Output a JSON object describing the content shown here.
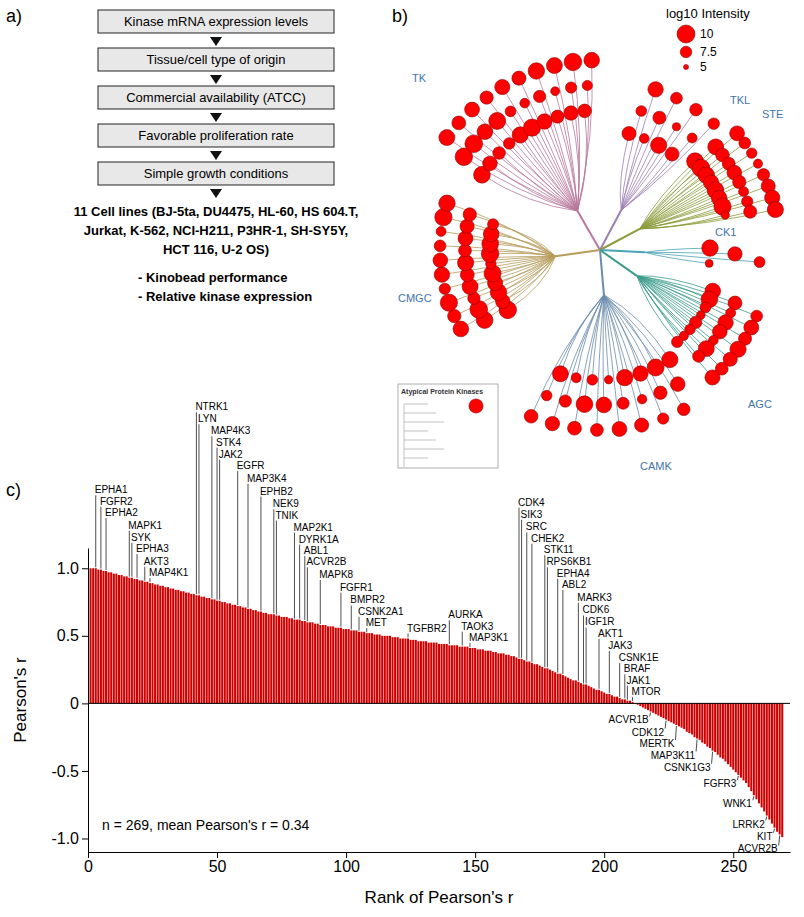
{
  "panel_labels": [
    "a)",
    "b)",
    "c)"
  ],
  "flowchart": {
    "steps": [
      "Kinase mRNA expression levels",
      "Tissue/cell type of origin",
      "Commercial availability (ATCC)",
      "Favorable proliferation rate",
      "Simple growth conditions"
    ],
    "result": "11 Cell lines (BJ-5ta, DU4475, HL-60, HS 604.T, Jurkat, K-562, NCI-H211, P3HR-1, SH-SY5Y, HCT 116, U-2 OS)",
    "criteria": [
      "- Kinobead performance",
      "- Relative kinase expression"
    ]
  },
  "kinome_tree": {
    "legend_title": "log10 Intensity",
    "legend_values": [
      10,
      7.5,
      5
    ],
    "color": "#ff0000",
    "inset_title": "Atypical Protein Kinases",
    "inset_intensities": [
      8.5
    ],
    "groups": [
      {
        "name": "TK",
        "intensities": [
          9.5,
          9.8,
          9.2,
          8.7,
          9.9,
          8.4,
          7.9,
          9.1,
          8.8,
          7.5,
          9.6,
          8.2,
          9.3,
          7.2,
          8.9,
          9.7,
          6.8,
          8.5,
          9.0,
          7.8,
          9.4,
          8.1,
          6.5,
          9.2,
          8.6,
          7.4,
          9.8,
          8.3,
          7.0,
          9.1
        ]
      },
      {
        "name": "TKL",
        "intensities": [
          8.5,
          7.2,
          9.0,
          6.8,
          8.1,
          7.6,
          9.3,
          6.2,
          7.9,
          8.4,
          6.9,
          7.5
        ]
      },
      {
        "name": "STE",
        "intensities": [
          9.6,
          9.2,
          8.8,
          9.9,
          8.3,
          7.6,
          9.4,
          8.0,
          7.1,
          9.0,
          8.7,
          6.6,
          9.5,
          8.2,
          7.8,
          9.1,
          6.9,
          8.5,
          9.7,
          7.4,
          8.9,
          6.3,
          8.1,
          9.3
        ]
      },
      {
        "name": "CK1",
        "intensities": [
          9.4,
          8.6,
          7.3,
          6.1
        ]
      },
      {
        "name": "AGC",
        "intensities": [
          9.1,
          8.4,
          7.6,
          9.5,
          6.9,
          8.8,
          7.2,
          9.0,
          8.1,
          6.4,
          8.7,
          9.3,
          7.8,
          6.8,
          8.5,
          7.1,
          9.2,
          8.0,
          6.6,
          7.7,
          8.9,
          7.4
        ]
      },
      {
        "name": "CAMK",
        "intensities": [
          9.3,
          8.7,
          7.9,
          9.6,
          8.2,
          7.4,
          9.0,
          6.7,
          8.5,
          9.4,
          7.7,
          8.8,
          6.3,
          9.1,
          8.0,
          7.2,
          9.5,
          8.4,
          6.9,
          7.8,
          8.6,
          9.2,
          7.1,
          8.3
        ]
      },
      {
        "name": "CMGC",
        "intensities": [
          9.8,
          9.5,
          9.1,
          8.6,
          9.9,
          8.2,
          9.4,
          7.8,
          9.7,
          8.9,
          9.2,
          7.4,
          9.6,
          8.4,
          9.0,
          7.1,
          9.3,
          8.7,
          9.8,
          8.0,
          7.6,
          9.5,
          8.8,
          6.9,
          9.1,
          8.5,
          9.7,
          7.3,
          8.2,
          9.4
        ]
      }
    ]
  },
  "chart_data": {
    "type": "bar",
    "x_label": "Rank of Pearson's r",
    "y_label": "Pearson's r",
    "stats_text": "n = 269, mean Pearson's r = 0.34",
    "color": "#d00000",
    "xlim": [
      0,
      272
    ],
    "ylim": [
      -1.1,
      1.15
    ],
    "xticks": [
      0,
      50,
      100,
      150,
      200,
      250
    ],
    "yticks": [
      {
        "value": -1,
        "label": "-1.0"
      },
      {
        "value": -0.5,
        "label": "-0.5"
      },
      0,
      0.5,
      {
        "value": 1,
        "label": "1.0"
      }
    ],
    "x": [
      1,
      2,
      3,
      4,
      5,
      6,
      7,
      8,
      9,
      10,
      11,
      12,
      13,
      14,
      15,
      16,
      17,
      18,
      19,
      20,
      21,
      22,
      23,
      24,
      25,
      26,
      27,
      28,
      29,
      30,
      31,
      32,
      33,
      34,
      35,
      36,
      37,
      38,
      39,
      40,
      41,
      42,
      43,
      44,
      45,
      46,
      47,
      48,
      49,
      50,
      51,
      52,
      53,
      54,
      55,
      56,
      57,
      58,
      59,
      60,
      61,
      62,
      63,
      64,
      65,
      66,
      67,
      68,
      69,
      70,
      71,
      72,
      73,
      74,
      75,
      76,
      77,
      78,
      79,
      80,
      81,
      82,
      83,
      84,
      85,
      86,
      87,
      88,
      89,
      90,
      91,
      92,
      93,
      94,
      95,
      96,
      97,
      98,
      99,
      100,
      101,
      102,
      103,
      104,
      105,
      106,
      107,
      108,
      109,
      110,
      111,
      112,
      113,
      114,
      115,
      116,
      117,
      118,
      119,
      120,
      121,
      122,
      123,
      124,
      125,
      126,
      127,
      128,
      129,
      130,
      131,
      132,
      133,
      134,
      135,
      136,
      137,
      138,
      139,
      140,
      141,
      142,
      143,
      144,
      145,
      146,
      147,
      148,
      149,
      150,
      151,
      152,
      153,
      154,
      155,
      156,
      157,
      158,
      159,
      160,
      161,
      162,
      163,
      164,
      165,
      166,
      167,
      168,
      169,
      170,
      171,
      172,
      173,
      174,
      175,
      176,
      177,
      178,
      179,
      180,
      181,
      182,
      183,
      184,
      185,
      186,
      187,
      188,
      189,
      190,
      191,
      192,
      193,
      194,
      195,
      196,
      197,
      198,
      199,
      200,
      201,
      202,
      203,
      204,
      205,
      206,
      207,
      208,
      209,
      210,
      211,
      212,
      213,
      214,
      215,
      216,
      217,
      218,
      219,
      220,
      221,
      222,
      223,
      224,
      225,
      226,
      227,
      228,
      229,
      230,
      231,
      232,
      233,
      234,
      235,
      236,
      237,
      238,
      239,
      240,
      241,
      242,
      243,
      244,
      245,
      246,
      247,
      248,
      249,
      250,
      251,
      252,
      253,
      254,
      255,
      256,
      257,
      258,
      259,
      260,
      261,
      262,
      263,
      264,
      265,
      266,
      267,
      268,
      269
    ],
    "values": [
      1.0,
      1.0,
      1.0,
      0.99,
      0.99,
      0.98,
      0.98,
      0.97,
      0.97,
      0.96,
      0.96,
      0.95,
      0.95,
      0.94,
      0.94,
      0.93,
      0.93,
      0.92,
      0.92,
      0.91,
      0.91,
      0.9,
      0.9,
      0.89,
      0.89,
      0.88,
      0.88,
      0.87,
      0.87,
      0.86,
      0.86,
      0.85,
      0.85,
      0.84,
      0.84,
      0.83,
      0.83,
      0.82,
      0.82,
      0.81,
      0.81,
      0.8,
      0.8,
      0.79,
      0.79,
      0.78,
      0.78,
      0.77,
      0.77,
      0.76,
      0.76,
      0.75,
      0.75,
      0.74,
      0.74,
      0.73,
      0.73,
      0.72,
      0.72,
      0.71,
      0.71,
      0.7,
      0.7,
      0.69,
      0.69,
      0.68,
      0.68,
      0.67,
      0.67,
      0.66,
      0.66,
      0.66,
      0.65,
      0.65,
      0.64,
      0.64,
      0.64,
      0.63,
      0.63,
      0.62,
      0.62,
      0.62,
      0.61,
      0.61,
      0.6,
      0.6,
      0.6,
      0.59,
      0.59,
      0.58,
      0.58,
      0.58,
      0.57,
      0.57,
      0.57,
      0.56,
      0.56,
      0.56,
      0.55,
      0.55,
      0.55,
      0.54,
      0.54,
      0.54,
      0.53,
      0.53,
      0.53,
      0.52,
      0.52,
      0.52,
      0.51,
      0.51,
      0.51,
      0.5,
      0.5,
      0.5,
      0.5,
      0.49,
      0.49,
      0.49,
      0.48,
      0.48,
      0.48,
      0.48,
      0.47,
      0.47,
      0.47,
      0.46,
      0.46,
      0.46,
      0.46,
      0.45,
      0.45,
      0.45,
      0.45,
      0.44,
      0.44,
      0.44,
      0.44,
      0.43,
      0.43,
      0.43,
      0.43,
      0.42,
      0.42,
      0.42,
      0.42,
      0.41,
      0.41,
      0.41,
      0.4,
      0.4,
      0.4,
      0.39,
      0.39,
      0.39,
      0.38,
      0.38,
      0.37,
      0.37,
      0.37,
      0.36,
      0.36,
      0.35,
      0.35,
      0.34,
      0.33,
      0.33,
      0.32,
      0.31,
      0.31,
      0.3,
      0.29,
      0.29,
      0.28,
      0.27,
      0.26,
      0.26,
      0.25,
      0.24,
      0.23,
      0.22,
      0.22,
      0.21,
      0.2,
      0.19,
      0.18,
      0.17,
      0.17,
      0.16,
      0.15,
      0.14,
      0.14,
      0.13,
      0.12,
      0.11,
      0.1,
      0.1,
      0.09,
      0.08,
      0.07,
      0.07,
      0.06,
      0.05,
      0.05,
      0.04,
      0.03,
      0.03,
      0.02,
      0.02,
      0.01,
      0.0,
      -0.01,
      -0.02,
      -0.03,
      -0.04,
      -0.05,
      -0.06,
      -0.07,
      -0.08,
      -0.09,
      -0.1,
      -0.11,
      -0.12,
      -0.13,
      -0.14,
      -0.15,
      -0.16,
      -0.17,
      -0.18,
      -0.19,
      -0.21,
      -0.22,
      -0.23,
      -0.25,
      -0.26,
      -0.27,
      -0.29,
      -0.3,
      -0.32,
      -0.33,
      -0.35,
      -0.36,
      -0.38,
      -0.4,
      -0.41,
      -0.43,
      -0.45,
      -0.47,
      -0.49,
      -0.51,
      -0.53,
      -0.55,
      -0.57,
      -0.59,
      -0.62,
      -0.65,
      -0.68,
      -0.71,
      -0.74,
      -0.77,
      -0.8,
      -0.83,
      -0.86,
      -0.89,
      -0.92,
      -0.95,
      -0.97,
      -0.99
    ],
    "annotations": [
      {
        "text": "EPHA1",
        "x": 3
      },
      {
        "text": "FGFR2",
        "x": 5
      },
      {
        "text": "EPHA2",
        "x": 7
      },
      {
        "text": "MAPK1",
        "x": 16
      },
      {
        "text": "SYK",
        "x": 17
      },
      {
        "text": "EPHA3",
        "x": 19
      },
      {
        "text": "AKT3",
        "x": 22
      },
      {
        "text": "MAP4K1",
        "x": 24
      },
      {
        "text": "NTRK1",
        "x": 42
      },
      {
        "text": "LYN",
        "x": 43
      },
      {
        "text": "MAP4K3",
        "x": 48
      },
      {
        "text": "STK4",
        "x": 50
      },
      {
        "text": "JAK2",
        "x": 51
      },
      {
        "text": "EGFR",
        "x": 58
      },
      {
        "text": "MAP3K4",
        "x": 62
      },
      {
        "text": "EPHB2",
        "x": 67
      },
      {
        "text": "NEK9",
        "x": 72
      },
      {
        "text": "TNIK",
        "x": 73
      },
      {
        "text": "MAP2K1",
        "x": 80
      },
      {
        "text": "DYRK1A",
        "x": 82
      },
      {
        "text": "ABL1",
        "x": 84
      },
      {
        "text": "ACVR2B",
        "x": 85
      },
      {
        "text": "MAPK8",
        "x": 90
      },
      {
        "text": "FGFR1",
        "x": 98
      },
      {
        "text": "BMPR2",
        "x": 102
      },
      {
        "text": "CSNK2A1",
        "x": 105
      },
      {
        "text": "MET",
        "x": 108
      },
      {
        "text": "TGFBR2",
        "x": 124
      },
      {
        "text": "AURKA",
        "x": 140
      },
      {
        "text": "TAOK3",
        "x": 145
      },
      {
        "text": "MAP3K1",
        "x": 148
      },
      {
        "text": "CDK4",
        "x": 167
      },
      {
        "text": "SIK3",
        "x": 168
      },
      {
        "text": "SRC",
        "x": 170
      },
      {
        "text": "CHEK2",
        "x": 172
      },
      {
        "text": "STK11",
        "x": 177
      },
      {
        "text": "RPS6KB1",
        "x": 178
      },
      {
        "text": "EPHA4",
        "x": 182
      },
      {
        "text": "ABL2",
        "x": 184
      },
      {
        "text": "MARK3",
        "x": 190
      },
      {
        "text": "CDK6",
        "x": 192
      },
      {
        "text": "IGF1R",
        "x": 193
      },
      {
        "text": "AKT1",
        "x": 198
      },
      {
        "text": "JAK3",
        "x": 202
      },
      {
        "text": "CSNK1E",
        "x": 206
      },
      {
        "text": "BRAF",
        "x": 208
      },
      {
        "text": "JAK1",
        "x": 209
      },
      {
        "text": "MTOR",
        "x": 211
      },
      {
        "text": "ACVR1B",
        "x": 218
      },
      {
        "text": "CDK12",
        "x": 224
      },
      {
        "text": "MERTK",
        "x": 228
      },
      {
        "text": "MAP3K11",
        "x": 236
      },
      {
        "text": "CSNK1G3",
        "x": 242
      },
      {
        "text": "FGFR3",
        "x": 252
      },
      {
        "text": "WNK1",
        "x": 258
      },
      {
        "text": "LRRK2",
        "x": 263
      },
      {
        "text": "KIT",
        "x": 266
      },
      {
        "text": "ACVR2B",
        "x": 268
      }
    ]
  }
}
